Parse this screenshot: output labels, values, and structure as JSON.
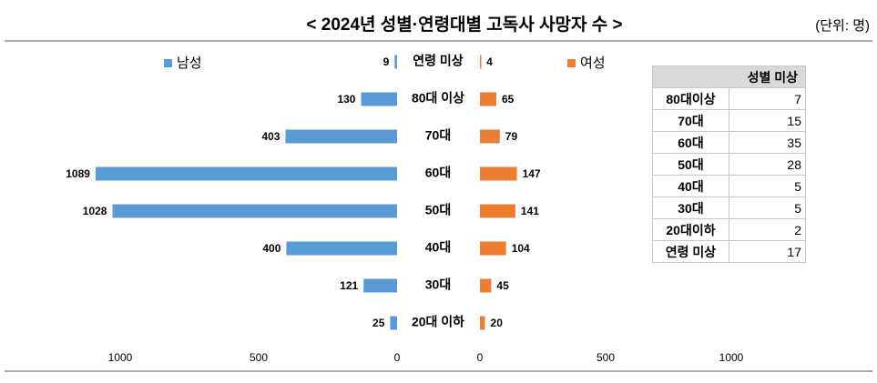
{
  "chart_data": [
    {
      "type": "bar",
      "orientation": "horizontal",
      "title": "< 2024년 성별·연령대별 고독사 사망자 수 >",
      "unit": "(단위: 명)",
      "categories": [
        "연령 미상",
        "80대 이상",
        "70대",
        "60대",
        "50대",
        "40대",
        "30대",
        "20대 이하"
      ],
      "series": [
        {
          "name": "남성",
          "color": "#5b9bd5",
          "values": [
            9,
            130,
            403,
            1089,
            1028,
            400,
            121,
            25
          ]
        }
      ],
      "xlim": [
        0,
        1000
      ],
      "xticks": [
        1000,
        500,
        0
      ],
      "x_reversed": true
    },
    {
      "type": "bar",
      "orientation": "horizontal",
      "series": [
        {
          "name": "여성",
          "color": "#ed7d31",
          "values": [
            4,
            65,
            79,
            147,
            141,
            104,
            45,
            20
          ]
        }
      ],
      "xlim": [
        0,
        1000
      ],
      "xticks": [
        0,
        500,
        1000
      ],
      "x_reversed": false
    }
  ],
  "table": {
    "header": "성별 미상",
    "rows": [
      [
        "80대이상",
        7
      ],
      [
        "70대",
        15
      ],
      [
        "60대",
        35
      ],
      [
        "50대",
        28
      ],
      [
        "40대",
        5
      ],
      [
        "30대",
        5
      ],
      [
        "20대이하",
        2
      ],
      [
        "연령 미상",
        17
      ]
    ]
  }
}
